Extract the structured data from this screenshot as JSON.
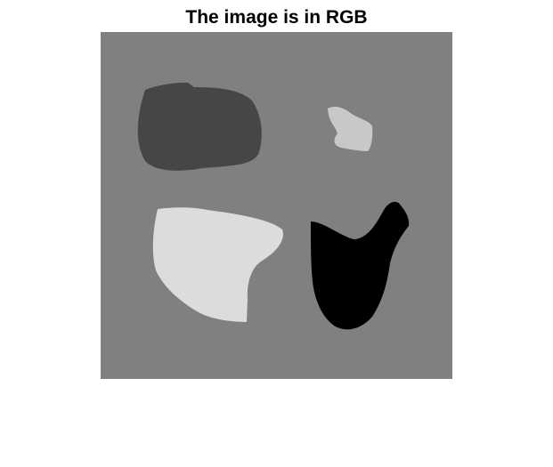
{
  "figure": {
    "title": "The image is in RGB"
  },
  "image": {
    "background_color": "#808080",
    "regions": [
      {
        "name": "dark-gray-blob",
        "color": "#464646"
      },
      {
        "name": "light-gray-small-blob",
        "color": "#c8c8c8"
      },
      {
        "name": "very-light-gray-blob",
        "color": "#dcdcdc"
      },
      {
        "name": "black-blob",
        "color": "#000000"
      }
    ]
  }
}
